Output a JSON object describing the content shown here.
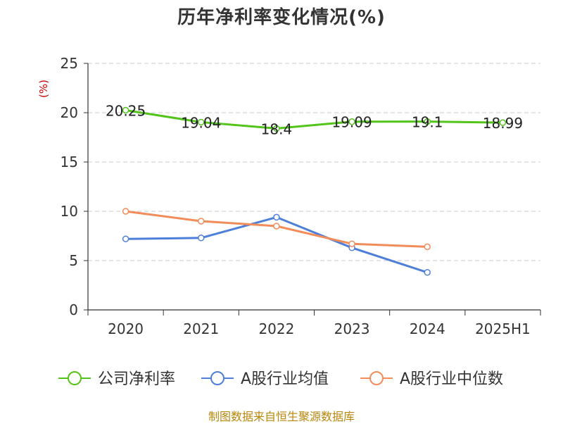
{
  "chart_data": {
    "type": "line",
    "title": "历年净利率变化情况(%)",
    "ylabel": "(%)",
    "categories": [
      "2020",
      "2021",
      "2022",
      "2023",
      "2024",
      "2025H1"
    ],
    "ylim": [
      0,
      25
    ],
    "yticks": [
      "0",
      "5",
      "10",
      "15",
      "20",
      "25"
    ],
    "grid": true,
    "legend_position": "bottom",
    "series": [
      {
        "name": "公司净利率",
        "color": "#52c41a",
        "values": [
          20.25,
          19.04,
          18.4,
          19.09,
          19.1,
          18.99
        ],
        "labels": [
          "20.25",
          "19.04",
          "18.4",
          "19.09",
          "19.1",
          "18.99"
        ]
      },
      {
        "name": "A股行业均值",
        "color": "#4e7fd9",
        "values": [
          7.2,
          7.3,
          9.4,
          6.3,
          3.8,
          null
        ]
      },
      {
        "name": "A股行业中位数",
        "color": "#f28c5a",
        "values": [
          10.0,
          9.0,
          8.5,
          6.7,
          6.4,
          null
        ]
      }
    ]
  },
  "source": "制图数据来自恒生聚源数据库"
}
